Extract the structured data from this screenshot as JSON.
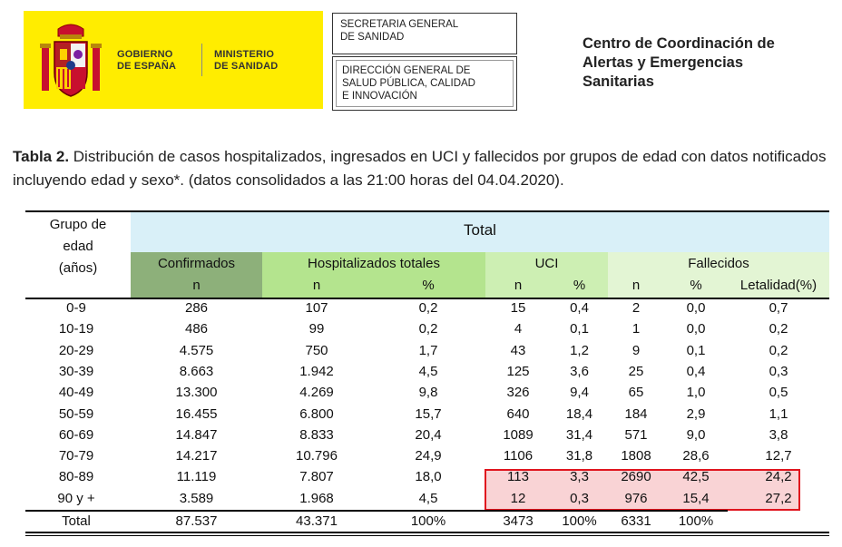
{
  "header": {
    "gov_line1": "GOBIERNO",
    "gov_line2": "DE ESPAÑA",
    "min_line1": "MINISTERIO",
    "min_line2": "DE SANIDAD",
    "sec_line1": "SECRETARIA GENERAL",
    "sec_line2": "DE SANIDAD",
    "dir_line1": "DIRECCIÓN GENERAL DE",
    "dir_line2": "SALUD PÚBLICA, CALIDAD",
    "dir_line3": "E INNOVACIÓN",
    "centro_line1": "Centro de Coordinación de",
    "centro_line2": "Alertas y Emergencias",
    "centro_line3": "Sanitarias",
    "banner_color": "#ffed00"
  },
  "caption": {
    "label": "Tabla 2.",
    "text": " Distribución de casos hospitalizados, ingresados en UCI y fallecidos por grupos de edad con datos notificados incluyendo edad y sexo*. (datos consolidados a las 21:00 horas del 04.04.2020)."
  },
  "table": {
    "group_header_line1": "Grupo de",
    "group_header_line2": "edad",
    "group_header_line3": "(años)",
    "total_header": "Total",
    "confirmados": "Confirmados",
    "hospitalizados": "Hospitalizados totales",
    "uci": "UCI",
    "fallecidos": "Fallecidos",
    "sub_n": "n",
    "sub_pct": "%",
    "sub_letalidad": "Letalidad(%)",
    "rows": [
      [
        "0-9",
        "286",
        "107",
        "0,2",
        "15",
        "0,4",
        "2",
        "0,0",
        "0,7"
      ],
      [
        "10-19",
        "486",
        "99",
        "0,2",
        "4",
        "0,1",
        "1",
        "0,0",
        "0,2"
      ],
      [
        "20-29",
        "4.575",
        "750",
        "1,7",
        "43",
        "1,2",
        "9",
        "0,1",
        "0,2"
      ],
      [
        "30-39",
        "8.663",
        "1.942",
        "4,5",
        "125",
        "3,6",
        "25",
        "0,4",
        "0,3"
      ],
      [
        "40-49",
        "13.300",
        "4.269",
        "9,8",
        "326",
        "9,4",
        "65",
        "1,0",
        "0,5"
      ],
      [
        "50-59",
        "16.455",
        "6.800",
        "15,7",
        "640",
        "18,4",
        "184",
        "2,9",
        "1,1"
      ],
      [
        "60-69",
        "14.847",
        "8.833",
        "20,4",
        "1089",
        "31,4",
        "571",
        "9,0",
        "3,8"
      ],
      [
        "70-79",
        "14.217",
        "10.796",
        "24,9",
        "1106",
        "31,8",
        "1808",
        "28,6",
        "12,7"
      ],
      [
        "80-89",
        "11.119",
        "7.807",
        "18,0",
        "113",
        "3,3",
        "2690",
        "42,5",
        "24,2"
      ],
      [
        "90 y +",
        "3.589",
        "1.968",
        "4,5",
        "12",
        "0,3",
        "976",
        "15,4",
        "27,2"
      ]
    ],
    "total_row": [
      "Total",
      "87.537",
      "43.371",
      "100%",
      "3473",
      "100%",
      "6331",
      "100%",
      ""
    ],
    "colors": {
      "total_bg": "#d9f0f8",
      "confirmados_bg": "#8db07a",
      "hospitalizados_bg": "#b4e48e",
      "uci_bg": "#cdefb3",
      "fallecidos_bg": "#e3f5d4",
      "highlight_fill": "#f9d3d5",
      "highlight_border": "#e0141e"
    }
  }
}
